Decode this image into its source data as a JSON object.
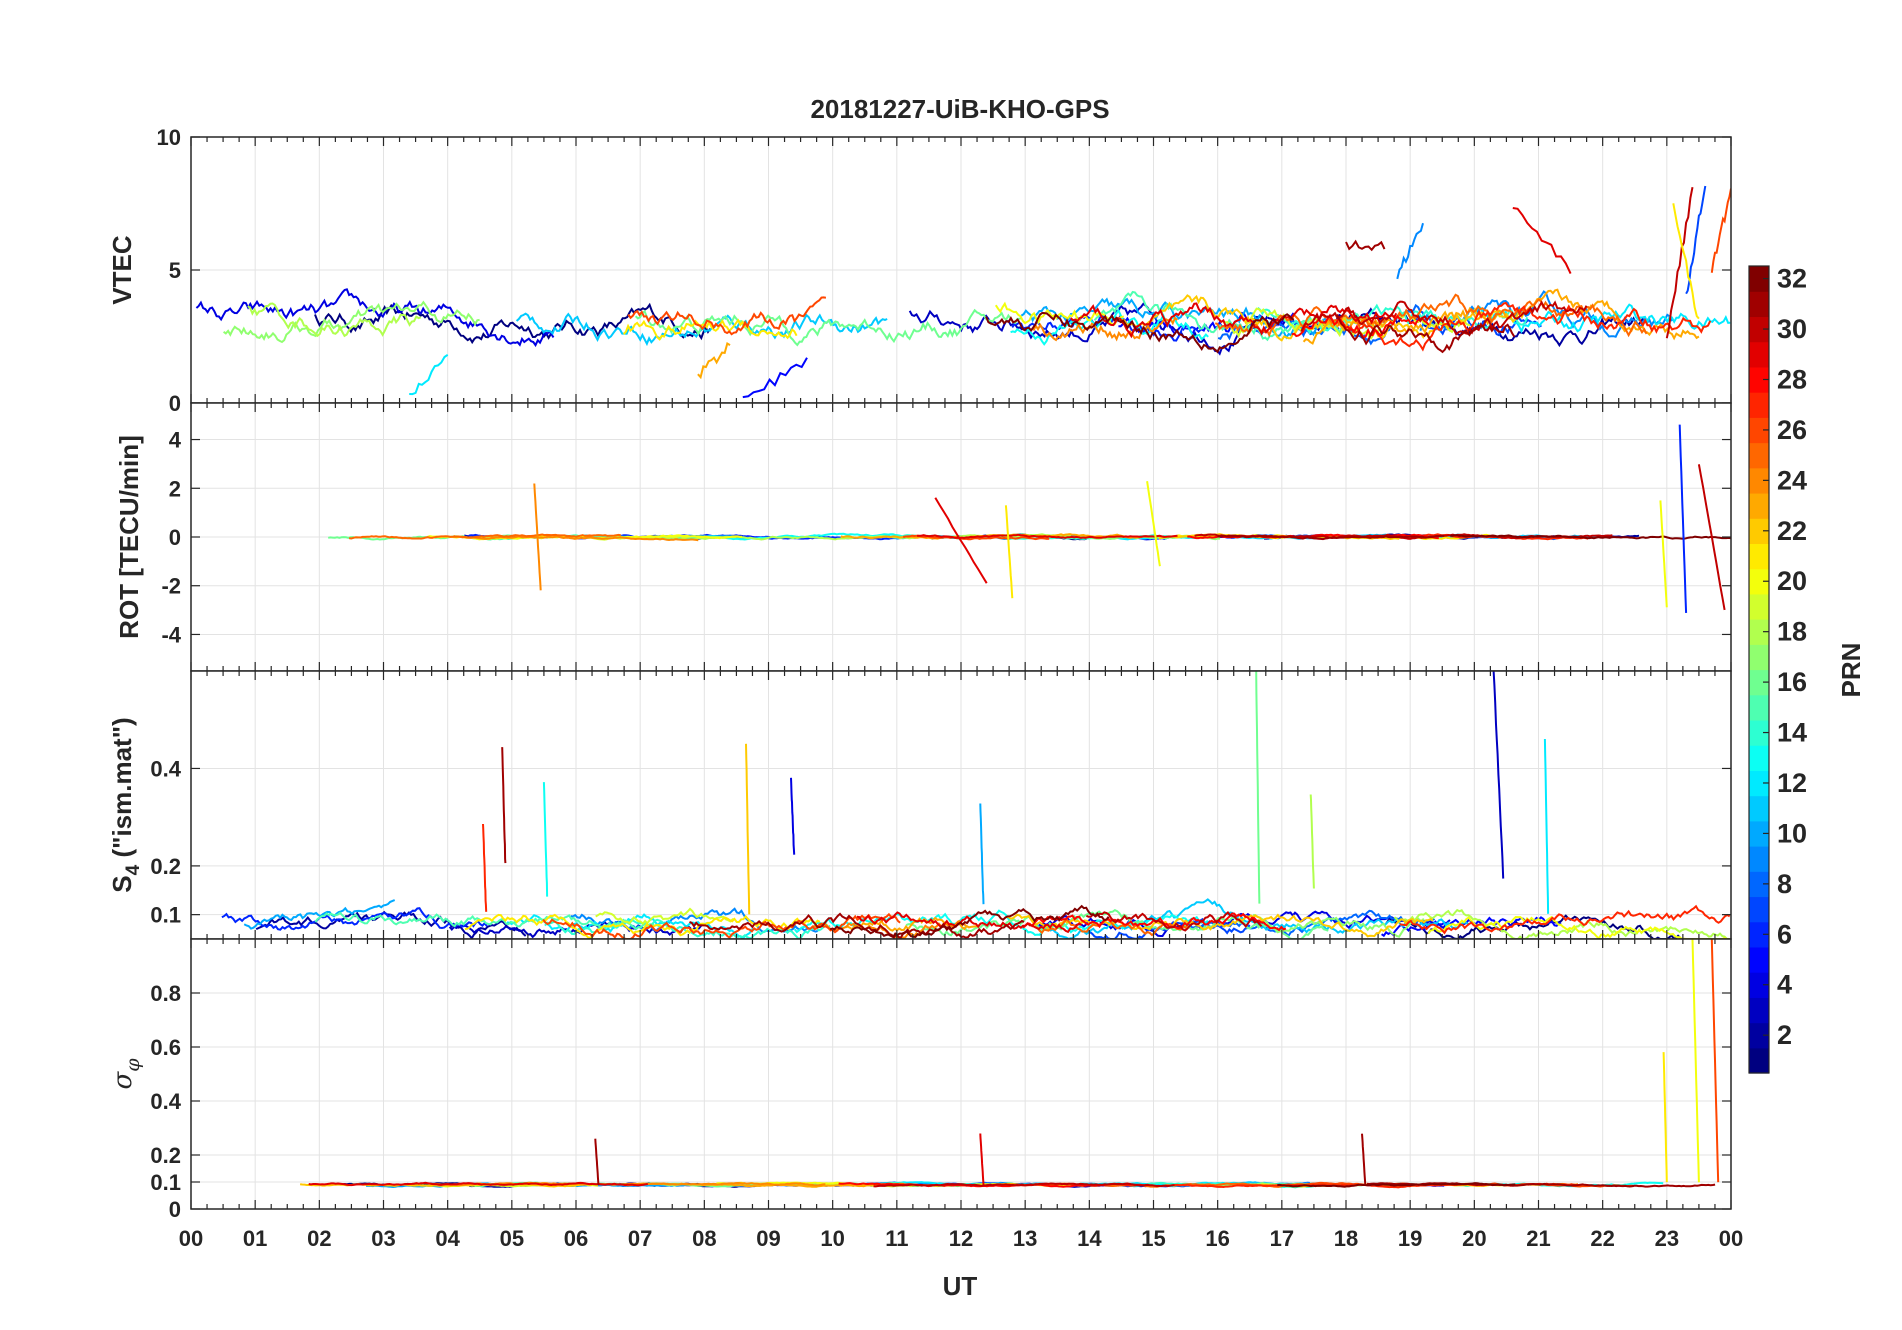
{
  "chart_data": {
    "type": "line",
    "title": "20181227-UiB-KHO-GPS",
    "xlabel": "UT",
    "x_tick_labels": [
      "00",
      "01",
      "02",
      "03",
      "04",
      "05",
      "06",
      "07",
      "08",
      "09",
      "10",
      "11",
      "12",
      "13",
      "14",
      "15",
      "16",
      "17",
      "18",
      "19",
      "20",
      "21",
      "22",
      "23",
      "00"
    ],
    "x_range_hours": [
      0,
      24
    ],
    "grid": true,
    "colorbar": {
      "label": "PRN",
      "colormap": "jet",
      "range": [
        1,
        32
      ],
      "tick_labels": [
        "2",
        "4",
        "6",
        "8",
        "10",
        "12",
        "14",
        "16",
        "18",
        "20",
        "22",
        "24",
        "26",
        "28",
        "30",
        "32"
      ],
      "placement": "right"
    },
    "panels": [
      {
        "ylabel": "VTEC",
        "ylim": [
          0,
          10
        ],
        "y_ticks": [
          0,
          5,
          10
        ],
        "y_tick_labels": [
          "0",
          "5",
          "10"
        ],
        "baseline": 3.0,
        "spread": 1.2,
        "events": [
          {
            "prn": 5,
            "t": [
              8.6,
              9.6
            ],
            "values": [
              0.1,
              1.6
            ]
          },
          {
            "prn": 12,
            "t": [
              3.4,
              4.0
            ],
            "values": [
              0.2,
              1.8
            ]
          },
          {
            "prn": 23,
            "t": [
              7.9,
              8.4
            ],
            "values": [
              1.0,
              2.2
            ]
          },
          {
            "prn": 29,
            "t": [
              20.6,
              21.5
            ],
            "values": [
              7.5,
              5.0
            ]
          },
          {
            "prn": 31,
            "t": [
              18.0,
              18.6
            ],
            "values": [
              5.9,
              5.9
            ]
          },
          {
            "prn": 9,
            "t": [
              18.8,
              19.2
            ],
            "values": [
              4.8,
              6.8
            ]
          },
          {
            "prn": 30,
            "t": [
              23.0,
              23.4
            ],
            "values": [
              2.5,
              8.0
            ]
          },
          {
            "prn": 7,
            "t": [
              23.3,
              23.6
            ],
            "values": [
              4.0,
              8.3
            ]
          },
          {
            "prn": 21,
            "t": [
              23.1,
              23.5
            ],
            "values": [
              7.5,
              3.0
            ]
          },
          {
            "prn": 26,
            "t": [
              23.7,
              24.0
            ],
            "values": [
              5.0,
              8.0
            ]
          }
        ]
      },
      {
        "ylabel": "ROT [TECU/min]",
        "ylim": [
          -5.5,
          5.5
        ],
        "y_ticks": [
          -4,
          -2,
          0,
          2,
          4
        ],
        "y_tick_labels": [
          "-4",
          "-2",
          "0",
          "2",
          "4"
        ],
        "baseline": 0.0,
        "spread": 0.15,
        "events": [
          {
            "prn": 24,
            "t": [
              5.35,
              5.45
            ],
            "values": [
              2.2,
              -2.2
            ]
          },
          {
            "prn": 29,
            "t": [
              11.6,
              12.4
            ],
            "values": [
              1.6,
              -1.9
            ]
          },
          {
            "prn": 21,
            "t": [
              12.7,
              12.8
            ],
            "values": [
              1.3,
              -2.5
            ]
          },
          {
            "prn": 20,
            "t": [
              14.9,
              15.1
            ],
            "values": [
              2.3,
              -1.2
            ]
          },
          {
            "prn": 6,
            "t": [
              23.2,
              23.3
            ],
            "values": [
              4.6,
              -3.1
            ]
          },
          {
            "prn": 20,
            "t": [
              22.9,
              23.0
            ],
            "values": [
              1.5,
              -2.9
            ]
          },
          {
            "prn": 30,
            "t": [
              23.5,
              23.9
            ],
            "values": [
              3.0,
              -3.0
            ]
          }
        ]
      },
      {
        "ylabel": "S4 (\"ism.mat\")",
        "ylabel_main": "S",
        "ylabel_sub": "4",
        "ylabel_rest": " (\"ism.mat\")",
        "ylim": [
          0.05,
          0.6
        ],
        "y_ticks": [
          0.1,
          0.2,
          0.4
        ],
        "y_tick_labels": [
          "0.1",
          "0.2",
          "0.4"
        ],
        "baseline": 0.08,
        "spread": 0.04,
        "events": [
          {
            "prn": 31,
            "t": [
              4.85,
              4.9
            ],
            "values": [
              0.44,
              0.2
            ]
          },
          {
            "prn": 27,
            "t": [
              4.55,
              4.6
            ],
            "values": [
              0.29,
              0.1
            ]
          },
          {
            "prn": 13,
            "t": [
              5.5,
              5.55
            ],
            "values": [
              0.37,
              0.14
            ]
          },
          {
            "prn": 22,
            "t": [
              8.65,
              8.7
            ],
            "values": [
              0.45,
              0.1
            ]
          },
          {
            "prn": 4,
            "t": [
              9.35,
              9.4
            ],
            "values": [
              0.38,
              0.22
            ]
          },
          {
            "prn": 10,
            "t": [
              12.3,
              12.35
            ],
            "values": [
              0.33,
              0.12
            ]
          },
          {
            "prn": 16,
            "t": [
              16.6,
              16.65
            ],
            "values": [
              0.6,
              0.12
            ]
          },
          {
            "prn": 18,
            "t": [
              17.45,
              17.5
            ],
            "values": [
              0.35,
              0.15
            ]
          },
          {
            "prn": 3,
            "t": [
              20.3,
              20.45
            ],
            "values": [
              0.6,
              0.18
            ]
          },
          {
            "prn": 12,
            "t": [
              21.1,
              21.15
            ],
            "values": [
              0.46,
              0.1
            ]
          }
        ]
      },
      {
        "ylabel": "σφ",
        "ylabel_main": "σ",
        "ylabel_sub": "φ",
        "ylim": [
          0,
          1.0
        ],
        "y_ticks": [
          0,
          0.1,
          0.2,
          0.4,
          0.6,
          0.8
        ],
        "y_tick_labels": [
          "0",
          "0.1",
          "0.2",
          "0.4",
          "0.6",
          "0.8"
        ],
        "baseline": 0.09,
        "spread": 0.01,
        "events": [
          {
            "prn": 31,
            "t": [
              6.3,
              6.35
            ],
            "values": [
              0.26,
              0.09
            ]
          },
          {
            "prn": 29,
            "t": [
              12.3,
              12.35
            ],
            "values": [
              0.28,
              0.09
            ]
          },
          {
            "prn": 31,
            "t": [
              18.25,
              18.3
            ],
            "values": [
              0.28,
              0.09
            ]
          },
          {
            "prn": 21,
            "t": [
              22.95,
              23.0
            ],
            "values": [
              0.58,
              0.1
            ]
          },
          {
            "prn": 20,
            "t": [
              23.4,
              23.5
            ],
            "values": [
              1.0,
              0.1
            ]
          },
          {
            "prn": 26,
            "t": [
              23.7,
              23.8
            ],
            "values": [
              1.0,
              0.1
            ]
          }
        ]
      }
    ]
  }
}
